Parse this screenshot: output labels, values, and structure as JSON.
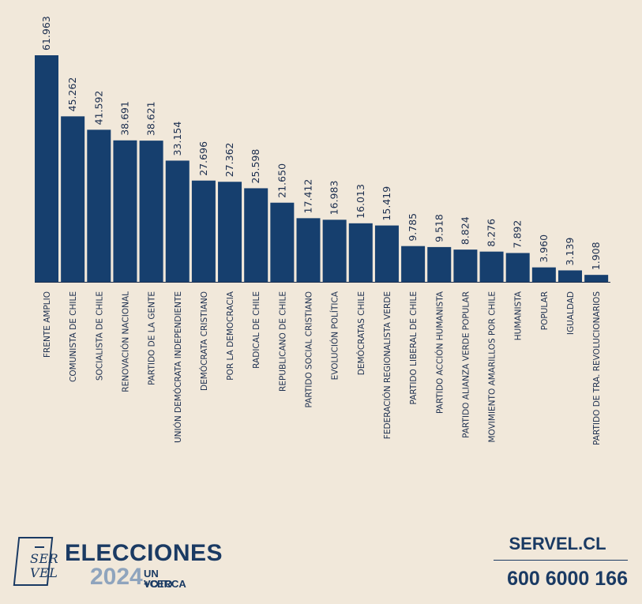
{
  "chart_data": {
    "type": "bar",
    "title": "",
    "xlabel": "",
    "ylabel": "",
    "ylim": [
      0,
      61963
    ],
    "grid": false,
    "categories": [
      "FRENTE AMPLIO",
      "COMUNISTA DE CHILE",
      "SOCIALISTA DE CHILE",
      "RENOVACIÓN NACIONAL",
      "PARTIDO DE LA GENTE",
      "UNIÓN DEMÓCRATA INDEPENDIENTE",
      "DEMÓCRATA CRISTIANO",
      "POR LA DEMOCRACIA",
      "RADICAL DE CHILE",
      "REPUBLICANO DE CHILE",
      "PARTIDO SOCIAL CRISTIANO",
      "EVOLUCIÓN POLÍTICA",
      "DEMÓCRATAS CHILE",
      "FEDERACIÓN REGIONALISTA VERDE",
      "PARTIDO LIBERAL DE CHILE",
      "PARTIDO ACCIÓN HUMANISTA",
      "PARTIDO ALIANZA VERDE POPULAR",
      "MOVIMIENTO AMARILLOS POR CHILE",
      "HUMANISTA",
      "POPULAR",
      "IGUALDAD",
      "PARTIDO DE TRA. REVOLUCIONARIOS"
    ],
    "values": [
      61963,
      45262,
      41592,
      38691,
      38621,
      33154,
      27696,
      27362,
      25598,
      21650,
      17412,
      16983,
      16013,
      15419,
      9785,
      9518,
      8824,
      8276,
      7892,
      3960,
      3139,
      1908
    ],
    "value_labels": [
      "61.963",
      "45.262",
      "41.592",
      "38.691",
      "38.621",
      "33.154",
      "27.696",
      "27.362",
      "25.598",
      "21.650",
      "17.412",
      "16.983",
      "16.013",
      "15.419",
      "9.785",
      "9.518",
      "8.824",
      "8.276",
      "7.892",
      "3.960",
      "3.139",
      "1.908"
    ],
    "bar_color": "#163f6e"
  },
  "colors": {
    "background": "#f1e8da",
    "brand": "#1a3a63",
    "year": "#8fa4bd"
  },
  "footer": {
    "logo_top": "SER",
    "logo_bottom": "VEL",
    "title": "ELECCIONES",
    "year": "2024",
    "tagline_1": "UN VOTO",
    "tagline_2": "+CERCA",
    "website": "SERVEL.CL",
    "phone": "600 6000 166"
  }
}
